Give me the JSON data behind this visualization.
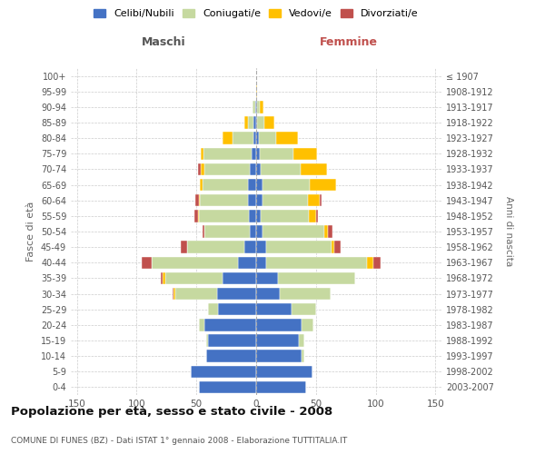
{
  "age_groups": [
    "0-4",
    "5-9",
    "10-14",
    "15-19",
    "20-24",
    "25-29",
    "30-34",
    "35-39",
    "40-44",
    "45-49",
    "50-54",
    "55-59",
    "60-64",
    "65-69",
    "70-74",
    "75-79",
    "80-84",
    "85-89",
    "90-94",
    "95-99",
    "100+"
  ],
  "birth_years": [
    "2003-2007",
    "1998-2002",
    "1993-1997",
    "1988-1992",
    "1983-1987",
    "1978-1982",
    "1973-1977",
    "1968-1972",
    "1963-1967",
    "1958-1962",
    "1953-1957",
    "1948-1952",
    "1943-1947",
    "1938-1942",
    "1933-1937",
    "1928-1932",
    "1923-1927",
    "1918-1922",
    "1913-1917",
    "1908-1912",
    "≤ 1907"
  ],
  "male_celibe": [
    48,
    55,
    42,
    40,
    43,
    32,
    33,
    28,
    15,
    10,
    5,
    6,
    7,
    7,
    5,
    4,
    2,
    2,
    1,
    0,
    0
  ],
  "male_coniugato": [
    0,
    0,
    0,
    2,
    5,
    8,
    35,
    48,
    72,
    48,
    38,
    42,
    40,
    38,
    38,
    40,
    18,
    5,
    2,
    0,
    0
  ],
  "male_vedovo": [
    0,
    0,
    0,
    0,
    0,
    0,
    1,
    2,
    0,
    0,
    0,
    1,
    1,
    2,
    3,
    2,
    8,
    3,
    0,
    0,
    0
  ],
  "male_divorziato": [
    0,
    0,
    0,
    0,
    0,
    0,
    1,
    2,
    9,
    5,
    2,
    3,
    3,
    0,
    3,
    0,
    0,
    0,
    0,
    0,
    0
  ],
  "female_celibe": [
    42,
    47,
    38,
    36,
    38,
    30,
    20,
    18,
    8,
    8,
    5,
    4,
    5,
    5,
    4,
    3,
    2,
    1,
    1,
    0,
    0
  ],
  "female_coniugato": [
    0,
    0,
    2,
    4,
    10,
    20,
    42,
    65,
    85,
    55,
    52,
    40,
    38,
    40,
    33,
    28,
    15,
    6,
    2,
    0,
    0
  ],
  "female_vedovo": [
    0,
    0,
    0,
    0,
    0,
    0,
    0,
    0,
    5,
    2,
    3,
    6,
    10,
    22,
    22,
    20,
    18,
    8,
    3,
    1,
    0
  ],
  "female_divorziato": [
    0,
    0,
    0,
    0,
    0,
    0,
    0,
    0,
    6,
    6,
    4,
    2,
    2,
    0,
    0,
    0,
    0,
    0,
    0,
    0,
    0
  ],
  "color_celibe": "#4472c4",
  "color_coniugato": "#c6d9a0",
  "color_vedovo": "#ffc000",
  "color_divorziato": "#c0504d",
  "title": "Popolazione per età, sesso e stato civile - 2008",
  "subtitle": "COMUNE DI FUNES (BZ) - Dati ISTAT 1° gennaio 2008 - Elaborazione TUTTITALIA.IT",
  "xlabel_left": "Maschi",
  "xlabel_right": "Femmine",
  "ylabel_left": "Fasce di età",
  "ylabel_right": "Anni di nascita",
  "xlim": 155,
  "background_color": "#ffffff"
}
